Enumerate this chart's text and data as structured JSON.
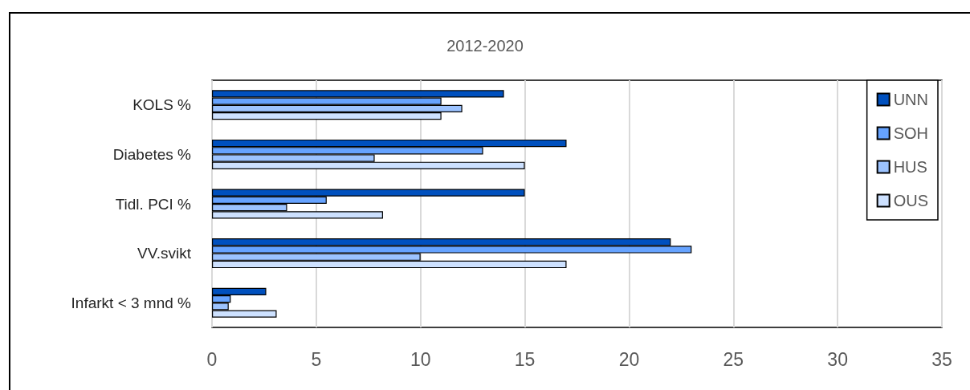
{
  "chart_data": {
    "type": "bar",
    "orientation": "horizontal",
    "title": "2012-2020",
    "categories": [
      "KOLS %",
      "Diabetes %",
      "Tidl. PCI %",
      "VV.svikt",
      "Infarkt < 3 mnd %"
    ],
    "series": [
      {
        "name": "UNN",
        "color": "#0050be",
        "values": [
          14,
          17,
          15,
          22,
          2.6
        ]
      },
      {
        "name": "SOH",
        "color": "#66a3ff",
        "values": [
          11,
          13,
          5.5,
          23,
          0.9
        ]
      },
      {
        "name": "HUS",
        "color": "#9cc3ff",
        "values": [
          12,
          7.8,
          3.6,
          10,
          0.8
        ]
      },
      {
        "name": "OUS",
        "color": "#cde1ff",
        "values": [
          11,
          15,
          8.2,
          17,
          3.1
        ]
      }
    ],
    "xlim": [
      0,
      35
    ],
    "xticks": [
      0,
      5,
      10,
      15,
      20,
      25,
      30,
      35
    ],
    "grid": "x",
    "legend": "top right"
  }
}
